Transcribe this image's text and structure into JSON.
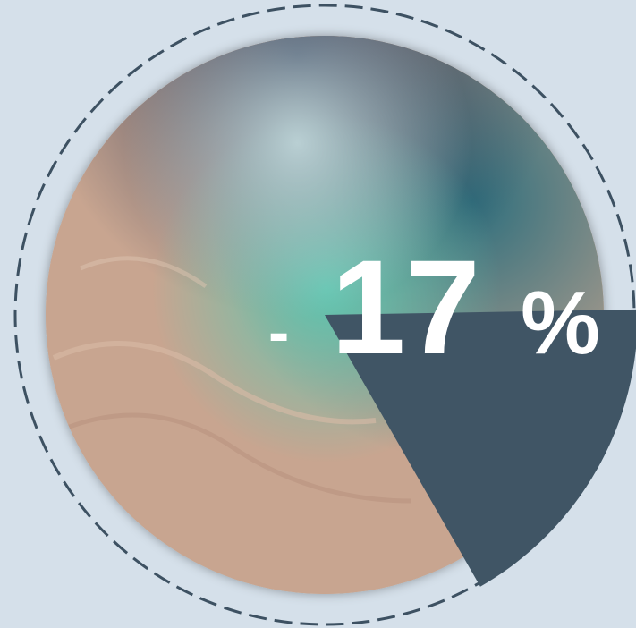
{
  "sign": "-",
  "value": 17,
  "unit": "%"
}
